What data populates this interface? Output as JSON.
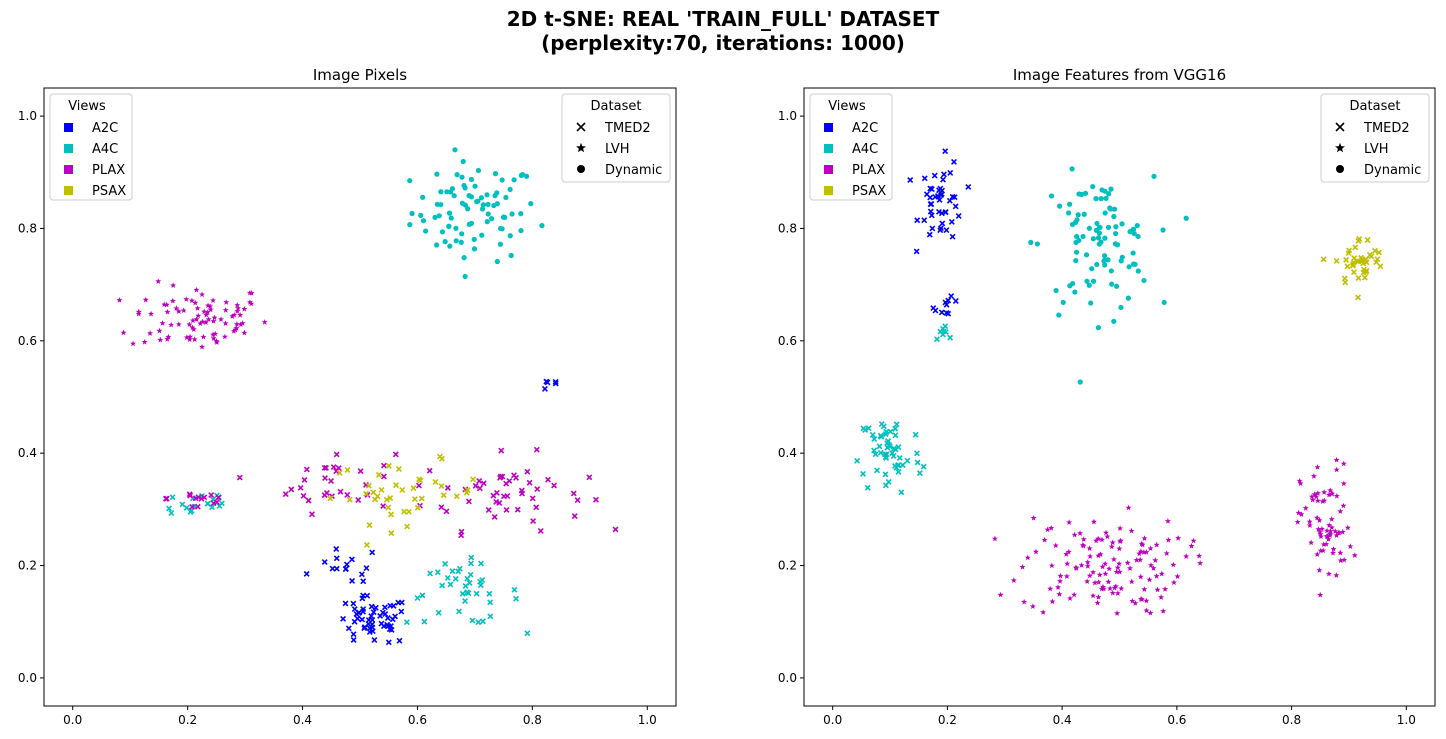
{
  "figure": {
    "title_line1": "2D t-SNE: REAL 'TRAIN_FULL' DATASET",
    "title_line2": "(perplexity:70, iterations: 1000)"
  },
  "colors": {
    "A2C": "#0000ff",
    "A4C": "#00bfbf",
    "PLAX": "#bf00bf",
    "PSAX": "#bfbf00"
  },
  "chart_data": [
    {
      "type": "scatter",
      "title": "Image Pixels",
      "xlabel": "",
      "ylabel": "",
      "xlim": [
        -0.05,
        1.05
      ],
      "ylim": [
        -0.05,
        1.05
      ],
      "xticks": [
        "0.0",
        "0.2",
        "0.4",
        "0.6",
        "0.8",
        "1.0"
      ],
      "yticks": [
        "0.0",
        "0.2",
        "0.4",
        "0.6",
        "0.8",
        "1.0"
      ],
      "grid": false,
      "legend_views": {
        "title": "Views",
        "placement": "top-left",
        "entries": [
          {
            "label": "A2C",
            "color": "#0000ff"
          },
          {
            "label": "A4C",
            "color": "#00bfbf"
          },
          {
            "label": "PLAX",
            "color": "#bf00bf"
          },
          {
            "label": "PSAX",
            "color": "#bfbf00"
          }
        ]
      },
      "legend_dataset": {
        "title": "Dataset",
        "placement": "top-right",
        "entries": [
          {
            "label": "TMED2",
            "marker": "x"
          },
          {
            "label": "LVH",
            "marker": "star"
          },
          {
            "label": "Dynamic",
            "marker": "circle"
          }
        ]
      },
      "clusters": [
        {
          "view": "A4C",
          "marker": "circle",
          "center": [
            0.7,
            0.83
          ],
          "spread": [
            0.1,
            0.08
          ],
          "count": 85
        },
        {
          "view": "PLAX",
          "marker": "star",
          "center": [
            0.22,
            0.64
          ],
          "spread": [
            0.11,
            0.055
          ],
          "count": 85
        },
        {
          "view": "PLAX",
          "marker": "x",
          "center": [
            0.75,
            0.33
          ],
          "spread": [
            0.13,
            0.06
          ],
          "count": 50
        },
        {
          "view": "PLAX",
          "marker": "x",
          "center": [
            0.45,
            0.35
          ],
          "spread": [
            0.1,
            0.05
          ],
          "count": 30
        },
        {
          "view": "PSAX",
          "marker": "x",
          "center": [
            0.58,
            0.33
          ],
          "spread": [
            0.12,
            0.05
          ],
          "count": 40
        },
        {
          "view": "A4C",
          "marker": "x",
          "center": [
            0.68,
            0.15
          ],
          "spread": [
            0.09,
            0.05
          ],
          "count": 40
        },
        {
          "view": "A4C",
          "marker": "x",
          "center": [
            0.22,
            0.31
          ],
          "spread": [
            0.06,
            0.025
          ],
          "count": 18
        },
        {
          "view": "PLAX",
          "marker": "x",
          "center": [
            0.22,
            0.32
          ],
          "spread": [
            0.05,
            0.025
          ],
          "count": 14
        },
        {
          "view": "A2C",
          "marker": "x",
          "center": [
            0.52,
            0.1
          ],
          "spread": [
            0.06,
            0.04
          ],
          "count": 55
        },
        {
          "view": "A2C",
          "marker": "x",
          "center": [
            0.48,
            0.2
          ],
          "spread": [
            0.05,
            0.03
          ],
          "count": 14
        },
        {
          "view": "A2C",
          "marker": "x",
          "center": [
            0.83,
            0.52
          ],
          "spread": [
            0.02,
            0.01
          ],
          "count": 5
        }
      ]
    },
    {
      "type": "scatter",
      "title": "Image Features from VGG16",
      "xlabel": "",
      "ylabel": "",
      "xlim": [
        -0.05,
        1.05
      ],
      "ylim": [
        -0.05,
        1.05
      ],
      "xticks": [
        "0.0",
        "0.2",
        "0.4",
        "0.6",
        "0.8",
        "1.0"
      ],
      "yticks": [
        "0.0",
        "0.2",
        "0.4",
        "0.6",
        "0.8",
        "1.0"
      ],
      "grid": false,
      "legend_views": {
        "title": "Views",
        "placement": "top-left",
        "entries": [
          {
            "label": "A2C",
            "color": "#0000ff"
          },
          {
            "label": "A4C",
            "color": "#00bfbf"
          },
          {
            "label": "PLAX",
            "color": "#bf00bf"
          },
          {
            "label": "PSAX",
            "color": "#bfbf00"
          }
        ]
      },
      "legend_dataset": {
        "title": "Dataset",
        "placement": "top-right",
        "entries": [
          {
            "label": "TMED2",
            "marker": "x"
          },
          {
            "label": "LVH",
            "marker": "star"
          },
          {
            "label": "Dynamic",
            "marker": "circle"
          }
        ]
      },
      "clusters": [
        {
          "view": "A2C",
          "marker": "x",
          "center": [
            0.19,
            0.85
          ],
          "spread": [
            0.035,
            0.065
          ],
          "count": 45
        },
        {
          "view": "A2C",
          "marker": "x",
          "center": [
            0.2,
            0.66
          ],
          "spread": [
            0.02,
            0.015
          ],
          "count": 10
        },
        {
          "view": "A4C",
          "marker": "x",
          "center": [
            0.2,
            0.62
          ],
          "spread": [
            0.02,
            0.015
          ],
          "count": 8
        },
        {
          "view": "A4C",
          "marker": "circle",
          "center": [
            0.46,
            0.77
          ],
          "spread": [
            0.09,
            0.11
          ],
          "count": 95
        },
        {
          "view": "A4C",
          "marker": "x",
          "center": [
            0.1,
            0.4
          ],
          "spread": [
            0.05,
            0.07
          ],
          "count": 55
        },
        {
          "view": "PSAX",
          "marker": "x",
          "center": [
            0.92,
            0.74
          ],
          "spread": [
            0.04,
            0.04
          ],
          "count": 40
        },
        {
          "view": "PLAX",
          "marker": "star",
          "center": [
            0.47,
            0.2
          ],
          "spread": [
            0.13,
            0.08
          ],
          "count": 130
        },
        {
          "view": "PLAX",
          "marker": "star",
          "center": [
            0.86,
            0.27
          ],
          "spread": [
            0.04,
            0.1
          ],
          "count": 70
        }
      ]
    }
  ]
}
